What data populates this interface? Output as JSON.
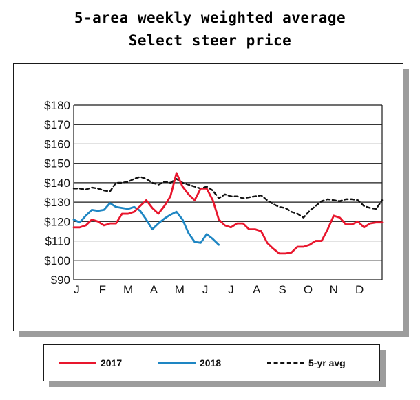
{
  "title_lines": [
    "5-area weekly weighted average",
    "Select steer price"
  ],
  "chart_data": {
    "type": "line",
    "title": "5-area weekly weighted average Select steer price",
    "xlabel": "",
    "ylabel": "",
    "ylim": [
      90,
      180
    ],
    "yticks": [
      "$180",
      "$170",
      "$160",
      "$150",
      "$140",
      "$130",
      "$120",
      "$110",
      "$100",
      "$90"
    ],
    "xticks": [
      "J",
      "F",
      "M",
      "A",
      "M",
      "J",
      "J",
      "A",
      "S",
      "O",
      "N",
      "D"
    ],
    "grid": true,
    "legend_position": "bottom",
    "series": [
      {
        "name": "2017",
        "color": "#e8162d",
        "style": "solid",
        "x": [
          1,
          2,
          3,
          4,
          5,
          6,
          7,
          8,
          9,
          10,
          11,
          12,
          13,
          14,
          15,
          16,
          17,
          18,
          19,
          20,
          21,
          22,
          23,
          24,
          25,
          26,
          27,
          28,
          29,
          30,
          31,
          32,
          33,
          34,
          35,
          36,
          37,
          38,
          39,
          40,
          41,
          42,
          43,
          44,
          45,
          46,
          47,
          48,
          49,
          50,
          51,
          52
        ],
        "values": [
          117,
          117,
          118,
          121,
          120,
          118,
          119,
          119,
          124,
          124,
          125,
          128,
          131,
          127,
          124,
          128,
          133,
          145,
          138,
          134,
          131,
          137,
          137,
          131,
          121,
          118,
          117,
          119,
          119,
          116,
          116,
          115,
          109,
          106,
          103.5,
          103.5,
          104,
          107,
          107,
          108,
          110,
          110,
          116,
          123,
          122,
          118.5,
          118.5,
          120,
          117,
          119,
          119.5,
          119.5
        ]
      },
      {
        "name": "2018",
        "color": "#1e86c3",
        "style": "solid",
        "x": [
          1,
          2,
          3,
          4,
          5,
          6,
          7,
          8,
          9,
          10,
          11,
          12,
          13,
          14,
          15,
          16,
          17,
          18,
          19,
          20,
          21,
          22,
          23,
          24,
          25
        ],
        "values": [
          121,
          119.5,
          123,
          126,
          125.5,
          126,
          129.5,
          127.5,
          127,
          126.5,
          127.5,
          125.5,
          121,
          116,
          119,
          121.5,
          123.5,
          125,
          121,
          114,
          109.5,
          109,
          113.5,
          111,
          108
        ]
      },
      {
        "name": "5-yr avg",
        "color": "#111111",
        "style": "dashed",
        "x": [
          1,
          2,
          3,
          4,
          5,
          6,
          7,
          8,
          9,
          10,
          11,
          12,
          13,
          14,
          15,
          16,
          17,
          18,
          19,
          20,
          21,
          22,
          23,
          24,
          25,
          26,
          27,
          28,
          29,
          30,
          31,
          32,
          33,
          34,
          35,
          36,
          37,
          38,
          39,
          40,
          41,
          42,
          43,
          44,
          45,
          46,
          47,
          48,
          49,
          50,
          51,
          52
        ],
        "values": [
          137,
          137,
          136.5,
          137.5,
          137,
          136,
          135.5,
          140,
          140,
          140.5,
          142,
          143,
          142,
          140,
          139,
          140.5,
          140,
          142,
          140,
          139,
          138,
          137,
          138,
          136,
          132,
          134,
          133,
          133,
          132,
          132.5,
          133,
          133.5,
          131,
          129,
          127.5,
          127,
          125,
          124,
          122,
          125.5,
          128,
          130.5,
          131.5,
          131,
          130.5,
          131.5,
          131.5,
          131,
          128,
          127,
          126.5,
          131
        ]
      }
    ]
  }
}
